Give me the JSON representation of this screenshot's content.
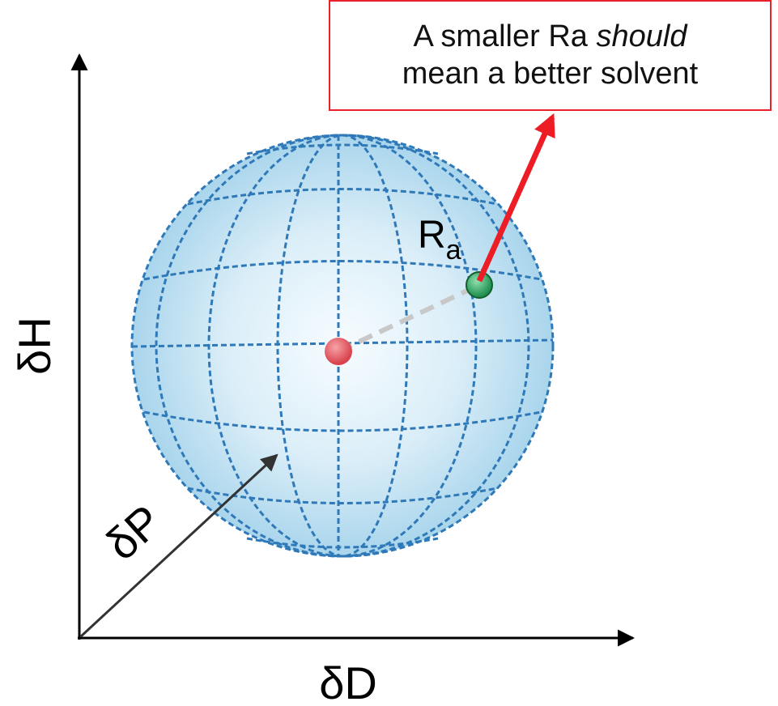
{
  "axes": {
    "y_label": "δH",
    "x_label": "δD",
    "z_label": "δP"
  },
  "sphere": {
    "radius_label": "R",
    "radius_subscript": "a"
  },
  "callout": {
    "line1": "A smaller Ra ",
    "line1_emphasis": "should",
    "line2": "mean a better solvent"
  },
  "colors": {
    "sphere_fill": "#bfe0f1",
    "sphere_grid": "#2f79b9",
    "center_point": "#e05a62",
    "solvent_point": "#3aa86a",
    "arrow": "#ee1c24",
    "distance_line": "#c8c8c8",
    "callout_border": "#e8202a"
  }
}
